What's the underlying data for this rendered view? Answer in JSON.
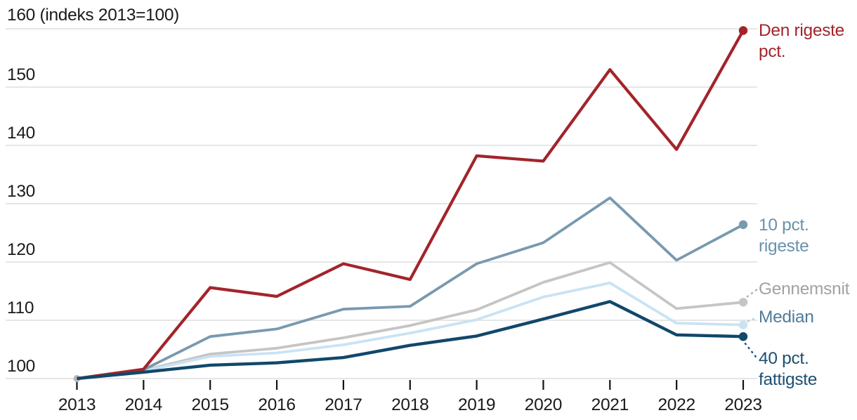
{
  "page": {
    "background": "#ffffff"
  },
  "chart_data": {
    "type": "line",
    "top_label": "160 (indeks 2013=100)",
    "unit_note": "indeks 2013=100",
    "x_labels": [
      "2013",
      "2014",
      "2015",
      "2016",
      "2017",
      "2018",
      "2019",
      "2020",
      "2021",
      "2022",
      "2023"
    ],
    "y_ticks": [
      100,
      110,
      120,
      130,
      140,
      150
    ],
    "ylim": [
      100,
      160
    ],
    "grid": "horizontal-light-gray",
    "legend_position": "right-end-labels",
    "axis_text_color": "#1a1a1a",
    "gridline_color": "#e3e3e3",
    "start_marker": {
      "x": "2013",
      "value": 100,
      "color": "#b9b9b9"
    },
    "series": [
      {
        "name": "Den rigeste pct.",
        "label": "Den rigeste\npct.",
        "color": "#a3242b",
        "label_color": "#a3242b",
        "values": [
          100,
          101.6,
          115.6,
          114.1,
          119.7,
          117.0,
          138.2,
          137.3,
          153.0,
          139.3,
          159.7
        ]
      },
      {
        "name": "10 pct. rigeste",
        "label": "10 pct.\nrigeste",
        "color": "#7899b0",
        "label_color": "#6992ab",
        "values": [
          100,
          101.5,
          107.2,
          108.5,
          111.9,
          112.4,
          119.7,
          123.3,
          131.0,
          120.3,
          126.4
        ]
      },
      {
        "name": "Gennemsnit",
        "label": "Gennemsnit",
        "color": "#c5c5c5",
        "label_color": "#a2a2a2",
        "values": [
          100,
          101.4,
          104.2,
          105.2,
          107.0,
          109.1,
          111.8,
          116.5,
          119.9,
          112.0,
          113.1
        ]
      },
      {
        "name": "Median",
        "label": "Median",
        "color": "#c9e3f4",
        "label_color": "#4e7c9a",
        "values": [
          100,
          101.3,
          103.8,
          104.4,
          105.8,
          107.8,
          110.1,
          114.0,
          116.4,
          109.5,
          109.2
        ]
      },
      {
        "name": "40 pct. fattigste",
        "label": "40 pct.\nfattigste",
        "color": "#10486b",
        "label_color": "#1d4f72",
        "values": [
          100,
          101.1,
          102.3,
          102.7,
          103.6,
          105.7,
          107.3,
          110.2,
          113.2,
          107.5,
          107.2
        ]
      }
    ]
  }
}
